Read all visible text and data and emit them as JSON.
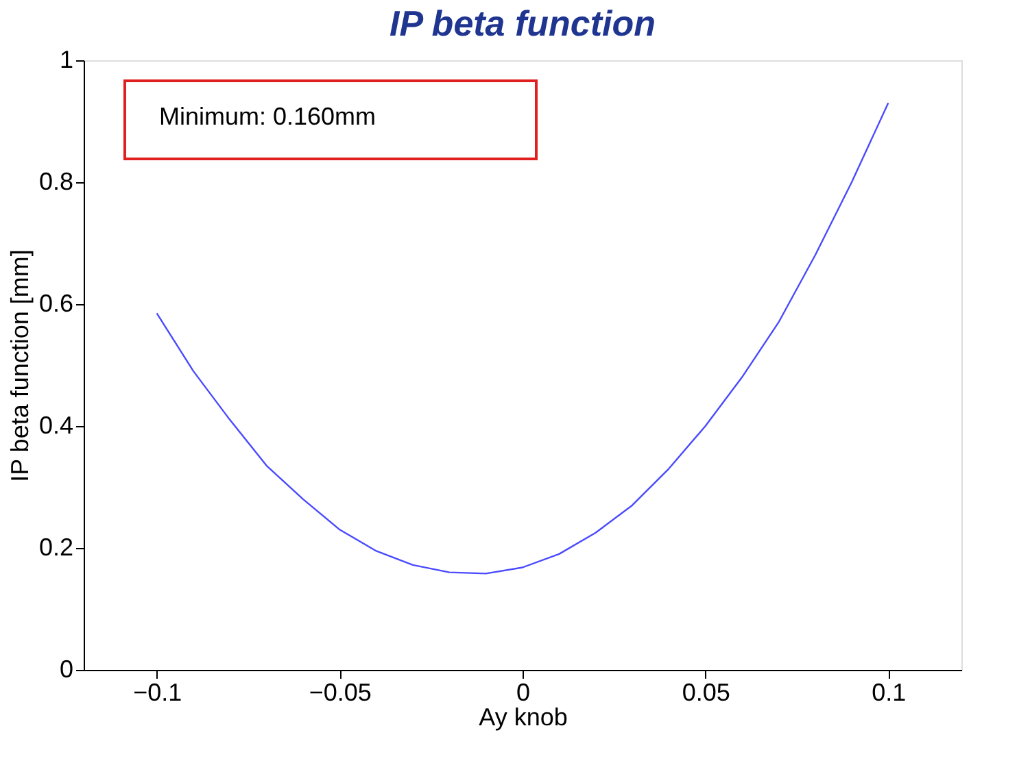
{
  "chart_data": {
    "type": "line",
    "title": "IP beta function",
    "xlabel": "Ay knob",
    "ylabel": "IP beta function [mm]",
    "x": [
      -0.1,
      -0.09,
      -0.08,
      -0.07,
      -0.06,
      -0.05,
      -0.04,
      -0.03,
      -0.02,
      -0.01,
      0,
      0.01,
      0.02,
      0.03,
      0.04,
      0.05,
      0.06,
      0.07,
      0.08,
      0.09,
      0.1
    ],
    "series": [
      {
        "color": "#4a4aff",
        "values": [
          0.585,
          0.49,
          0.41,
          0.335,
          0.28,
          0.23,
          0.195,
          0.172,
          0.16,
          0.158,
          0.168,
          0.19,
          0.225,
          0.27,
          0.33,
          0.4,
          0.48,
          0.57,
          0.68,
          0.8,
          0.93
        ]
      }
    ],
    "xlim": [
      -0.12,
      0.12
    ],
    "xticks": [
      -0.1,
      -0.05,
      0,
      0.05,
      0.1
    ],
    "ylim": [
      0,
      1
    ],
    "yticks": [
      0,
      0.2,
      0.4,
      0.6,
      0.8,
      1
    ],
    "annotations": [
      "Minimum: 0.160mm"
    ],
    "grid": false,
    "marker": "none",
    "line_style": "solid"
  }
}
